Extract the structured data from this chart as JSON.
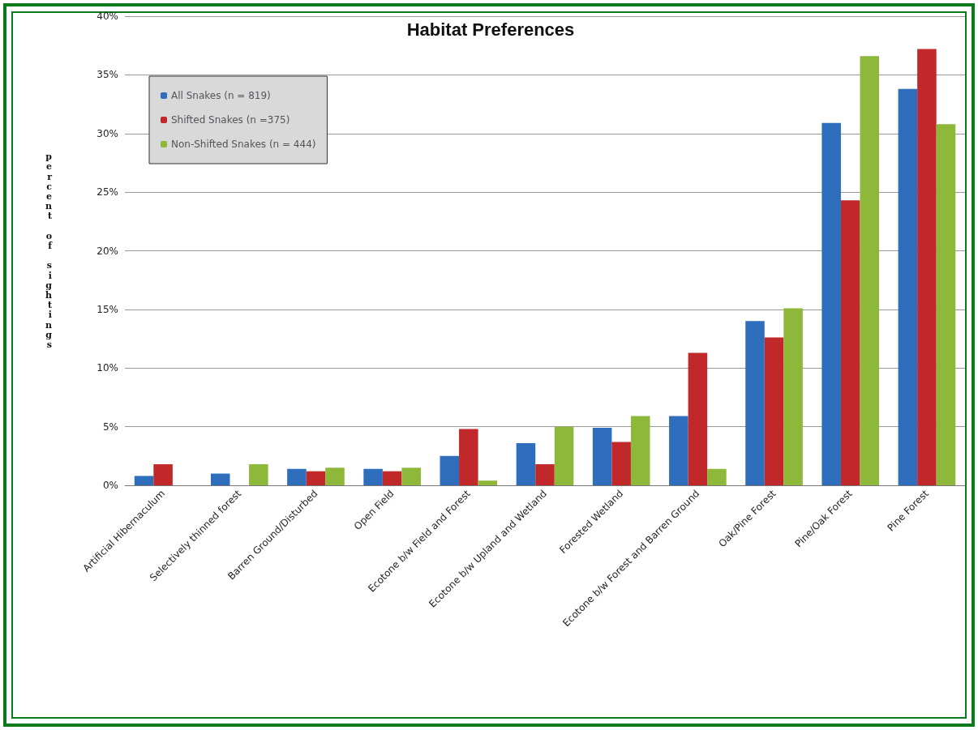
{
  "chart_data": {
    "type": "bar",
    "title": "Habitat Preferences",
    "ylabel": "percent of sightings",
    "categories": [
      "Artificial Hibernaculum",
      "Selectively thinned forest",
      "Barren Ground/Disturbed",
      "Open Field",
      "Ecotone b/w Field and Forest",
      "Ecotone b/w Upland and Wetland",
      "Forested Wetland",
      "Ecotone b/w Forest and Barren Ground",
      "Oak/Pine Forest",
      "Pine/Oak Forest",
      "Pine Forest"
    ],
    "series": [
      {
        "name": "All Snakes (n = 819)",
        "color": "#2e6ebd",
        "values": [
          0.8,
          1.0,
          1.4,
          1.4,
          2.5,
          3.6,
          4.9,
          5.9,
          14.0,
          30.9,
          33.8
        ]
      },
      {
        "name": "Shifted Snakes (n =375)",
        "color": "#c0282a",
        "values": [
          1.8,
          0,
          1.2,
          1.2,
          4.8,
          1.8,
          3.7,
          11.3,
          12.6,
          24.3,
          37.2
        ]
      },
      {
        "name": "Non-Shifted Snakes (n = 444)",
        "color": "#8db83a",
        "values": [
          0,
          1.8,
          1.5,
          1.5,
          0.4,
          5.0,
          5.9,
          1.4,
          15.1,
          36.6,
          30.8
        ]
      }
    ],
    "ylim": [
      0,
      40
    ],
    "yticks": [
      {
        "value": 0,
        "label": "0%"
      },
      {
        "value": 5,
        "label": "5%"
      },
      {
        "value": 10,
        "label": "10%"
      },
      {
        "value": 15,
        "label": "15%"
      },
      {
        "value": 20,
        "label": "20%"
      },
      {
        "value": 25,
        "label": "25%"
      },
      {
        "value": 30,
        "label": "30%"
      },
      {
        "value": 35,
        "label": "35%"
      },
      {
        "value": 40,
        "label": "40%"
      }
    ],
    "grid": "y",
    "legend": "top left"
  }
}
